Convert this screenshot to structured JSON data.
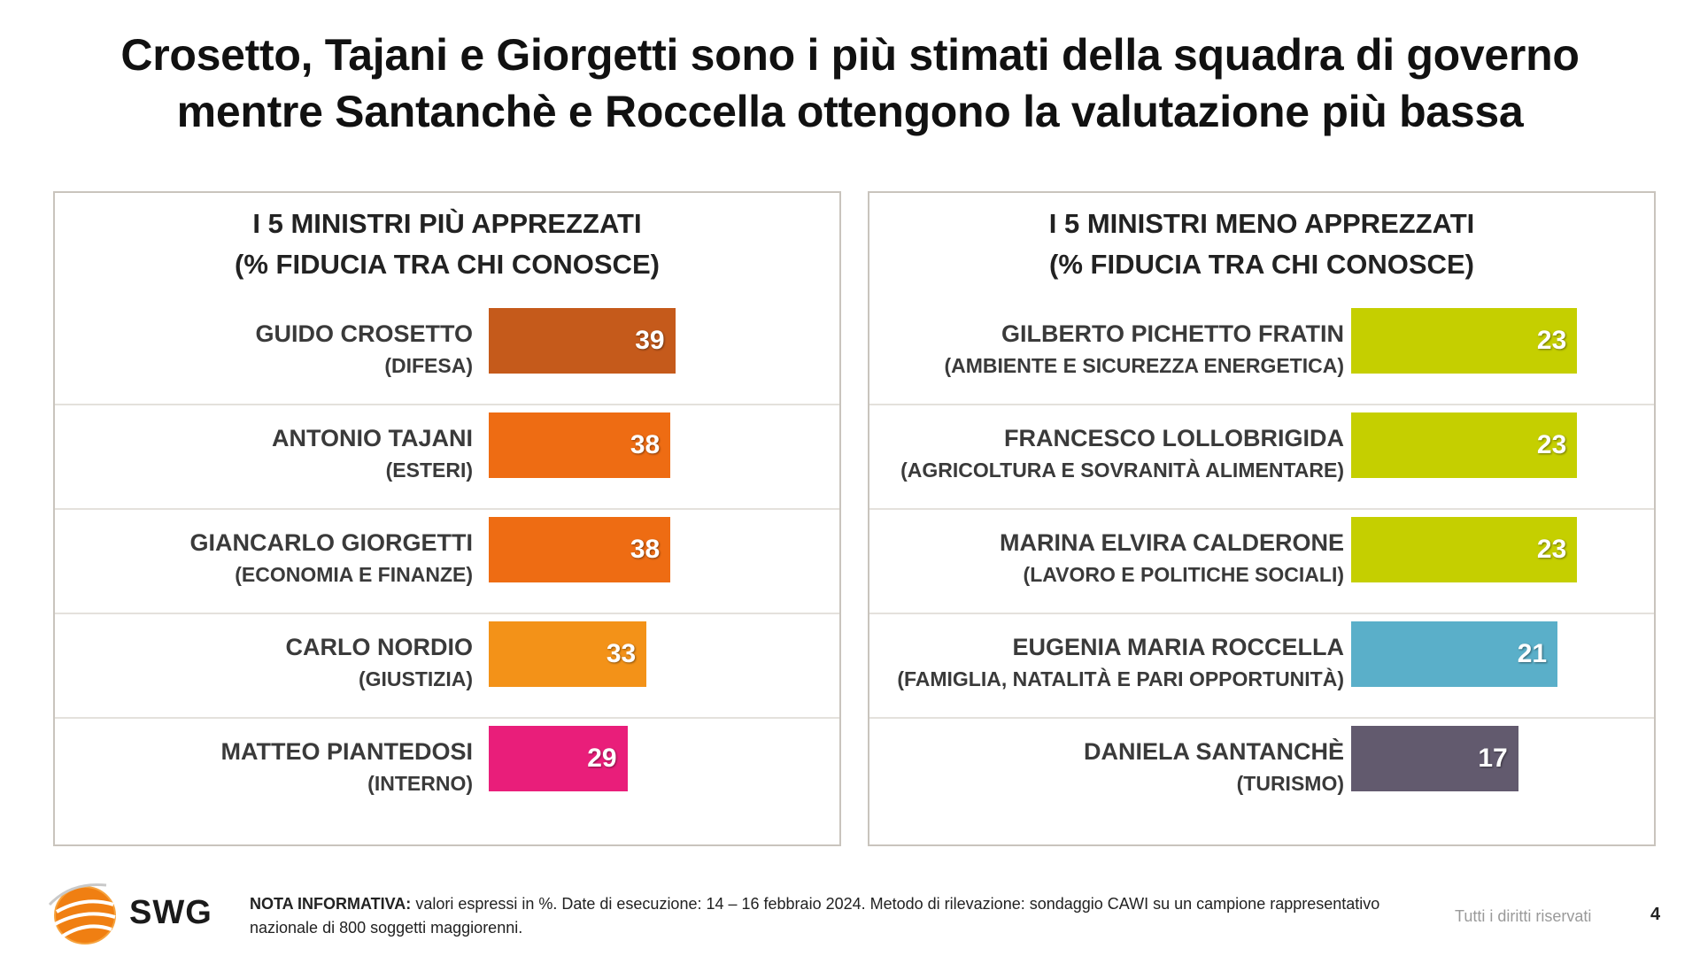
{
  "title": {
    "line1": "Crosetto, Tajani e Giorgetti sono i più stimati della squadra di governo",
    "line2": "mentre Santanchè e Roccella ottengono la valutazione più bassa"
  },
  "chart_data": [
    {
      "type": "bar",
      "orientation": "horizontal",
      "title_line1": "I 5 MINISTRI PIÙ APPREZZATI",
      "title_line2": "(% FIDUCIA TRA CHI CONOSCE)",
      "categories": [
        {
          "name": "GUIDO CROSETTO",
          "role": "(DIFESA)"
        },
        {
          "name": "ANTONIO TAJANI",
          "role": "(ESTERI)"
        },
        {
          "name": "GIANCARLO GIORGETTI",
          "role": "(ECONOMIA E FINANZE)"
        },
        {
          "name": "CARLO NORDIO",
          "role": "(GIUSTIZIA)"
        },
        {
          "name": "MATTEO PIANTEDOSI",
          "role": "(INTERNO)"
        }
      ],
      "values": [
        39,
        38,
        38,
        33,
        29
      ],
      "colors": [
        "#c55a1b",
        "#ee6c13",
        "#ee6c13",
        "#f39218",
        "#e91e7a"
      ],
      "xlim": [
        0,
        100
      ]
    },
    {
      "type": "bar",
      "orientation": "horizontal",
      "title_line1": "I 5 MINISTRI MENO APPREZZATI",
      "title_line2": "(% FIDUCIA TRA CHI CONOSCE)",
      "categories": [
        {
          "name": "GILBERTO PICHETTO FRATIN",
          "role": "(AMBIENTE E SICUREZZA ENERGETICA)"
        },
        {
          "name": "FRANCESCO LOLLOBRIGIDA",
          "role": "(AGRICOLTURA E SOVRANITÀ ALIMENTARE)"
        },
        {
          "name": "MARINA ELVIRA CALDERONE",
          "role": "(LAVORO E POLITICHE SOCIALI)"
        },
        {
          "name": "EUGENIA MARIA ROCCELLA",
          "role": "(FAMIGLIA, NATALITÀ E PARI OPPORTUNITÀ)"
        },
        {
          "name": "DANIELA SANTANCHÈ",
          "role": "(TURISMO)"
        }
      ],
      "values": [
        23,
        23,
        23,
        21,
        17
      ],
      "colors": [
        "#c5cf00",
        "#c5cf00",
        "#c5cf00",
        "#5aafc9",
        "#625a6e"
      ],
      "xlim": [
        0,
        100
      ]
    }
  ],
  "footer": {
    "logo": "SWG",
    "nota_label": "NOTA INFORMATIVA:",
    "nota_text": " valori espressi in %. Date di esecuzione: 14 – 16 febbraio 2024. Metodo di rilevazione: sondaggio CAWI su un campione rappresentativo nazionale di 800 soggetti maggiorenni.",
    "rights": "Tutti i diritti riservati",
    "page": "4"
  }
}
